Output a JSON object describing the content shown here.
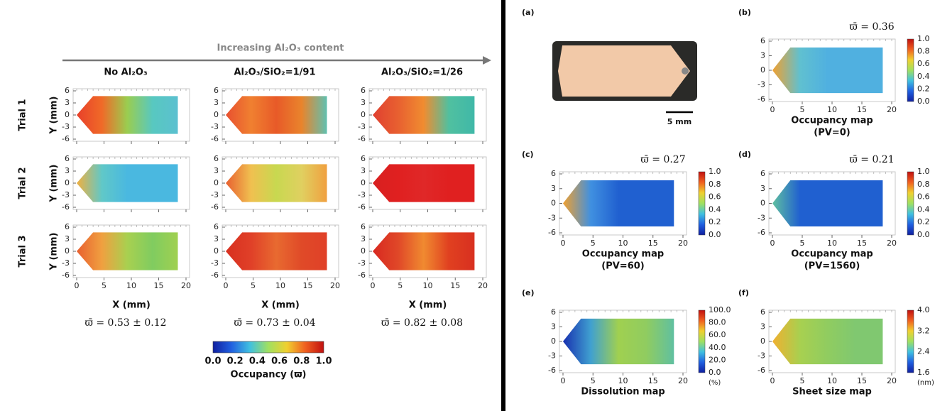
{
  "left": {
    "arrow_label": "Increasing Al₂O₃ content",
    "columns": [
      "No Al₂O₃",
      "Al₂O₃/SiO₂=1/91",
      "Al₂O₃/SiO₂=1/26"
    ],
    "rows": [
      "Trial 1",
      "Trial 2",
      "Trial 3"
    ],
    "y_axis_label": "Y (mm)",
    "x_axis_label": "X (mm)",
    "yticks": [
      "6",
      "3",
      "0",
      "-3",
      "-6"
    ],
    "xticks": [
      "0",
      "5",
      "10",
      "15",
      "20"
    ],
    "summaries": [
      "ϖ̄ = 0.53 ± 0.12",
      "ϖ̄ = 0.73 ± 0.04",
      "ϖ̄ = 0.82 ± 0.08"
    ],
    "colorbar": {
      "ticks": [
        "0.0",
        "0.2",
        "0.4",
        "0.6",
        "0.8",
        "1.0"
      ],
      "label": "Occupancy (ϖ)"
    }
  },
  "right": {
    "yticks": [
      "6",
      "3",
      "0",
      "-3",
      "-6"
    ],
    "xticks": [
      "0",
      "5",
      "10",
      "15",
      "20"
    ],
    "panels": [
      {
        "label": "(a)",
        "scale_bar": "5 mm"
      },
      {
        "label": "(b)",
        "mean": "ϖ̄ = 0.36",
        "caption": [
          "Occupancy map",
          "(PV=0)"
        ],
        "colorbar_ticks": [
          "1.0",
          "0.8",
          "0.6",
          "0.4",
          "0.2",
          "0.0"
        ]
      },
      {
        "label": "(c)",
        "mean": "ϖ̄ = 0.27",
        "caption": [
          "Occupancy map",
          "(PV=60)"
        ],
        "colorbar_ticks": [
          "1.0",
          "0.8",
          "0.6",
          "0.4",
          "0.2",
          "0.0"
        ]
      },
      {
        "label": "(d)",
        "mean": "ϖ̄ = 0.21",
        "caption": [
          "Occupancy map",
          "(PV=1560)"
        ],
        "colorbar_ticks": [
          "1.0",
          "0.8",
          "0.6",
          "0.4",
          "0.2",
          "0.0"
        ]
      },
      {
        "label": "(e)",
        "caption": [
          "Dissolution map"
        ],
        "colorbar_ticks": [
          "100.0",
          "80.0",
          "60.0",
          "40.0",
          "20.0",
          "0.0"
        ],
        "colorbar_unit": "(%)"
      },
      {
        "label": "(f)",
        "caption": [
          "Sheet size map"
        ],
        "colorbar_ticks": [
          "4.0",
          "3.2",
          "2.4",
          "1.6"
        ],
        "colorbar_unit": "(nm)"
      }
    ]
  }
}
